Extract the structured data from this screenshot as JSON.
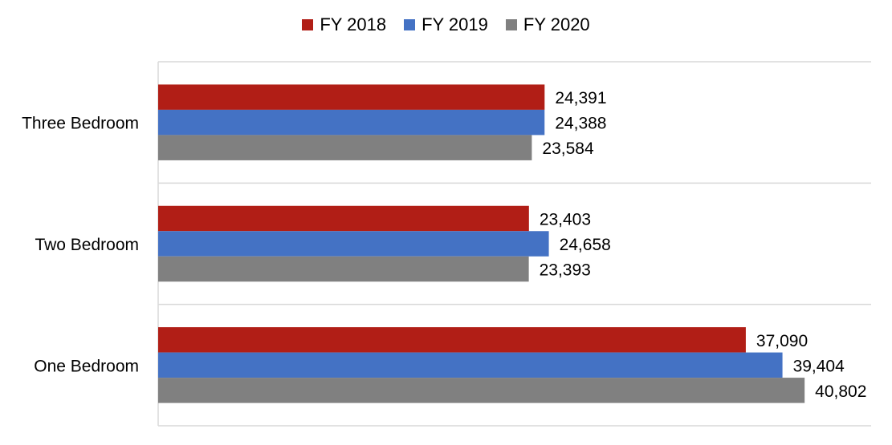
{
  "chart_data": {
    "type": "bar",
    "orientation": "horizontal",
    "categories": [
      "Three Bedroom",
      "Two Bedroom",
      "One Bedroom"
    ],
    "series": [
      {
        "name": "FY 2018",
        "color": "#B11E16",
        "values": [
          24391,
          23403,
          37090
        ],
        "labels": [
          "24,391",
          "23,403",
          "37,090"
        ]
      },
      {
        "name": "FY 2019",
        "color": "#4472C4",
        "values": [
          24388,
          24658,
          39404
        ],
        "labels": [
          "24,388",
          "24,658",
          "39,404"
        ]
      },
      {
        "name": "FY 2020",
        "color": "#808080",
        "values": [
          23584,
          23393,
          40802
        ],
        "labels": [
          "23,584",
          "23,393",
          "40,802"
        ]
      }
    ],
    "xlim": [
      0,
      45000
    ],
    "legend_position": "top-center",
    "gridlines": "horizontal category separators",
    "title": "",
    "xlabel": "",
    "ylabel": ""
  }
}
